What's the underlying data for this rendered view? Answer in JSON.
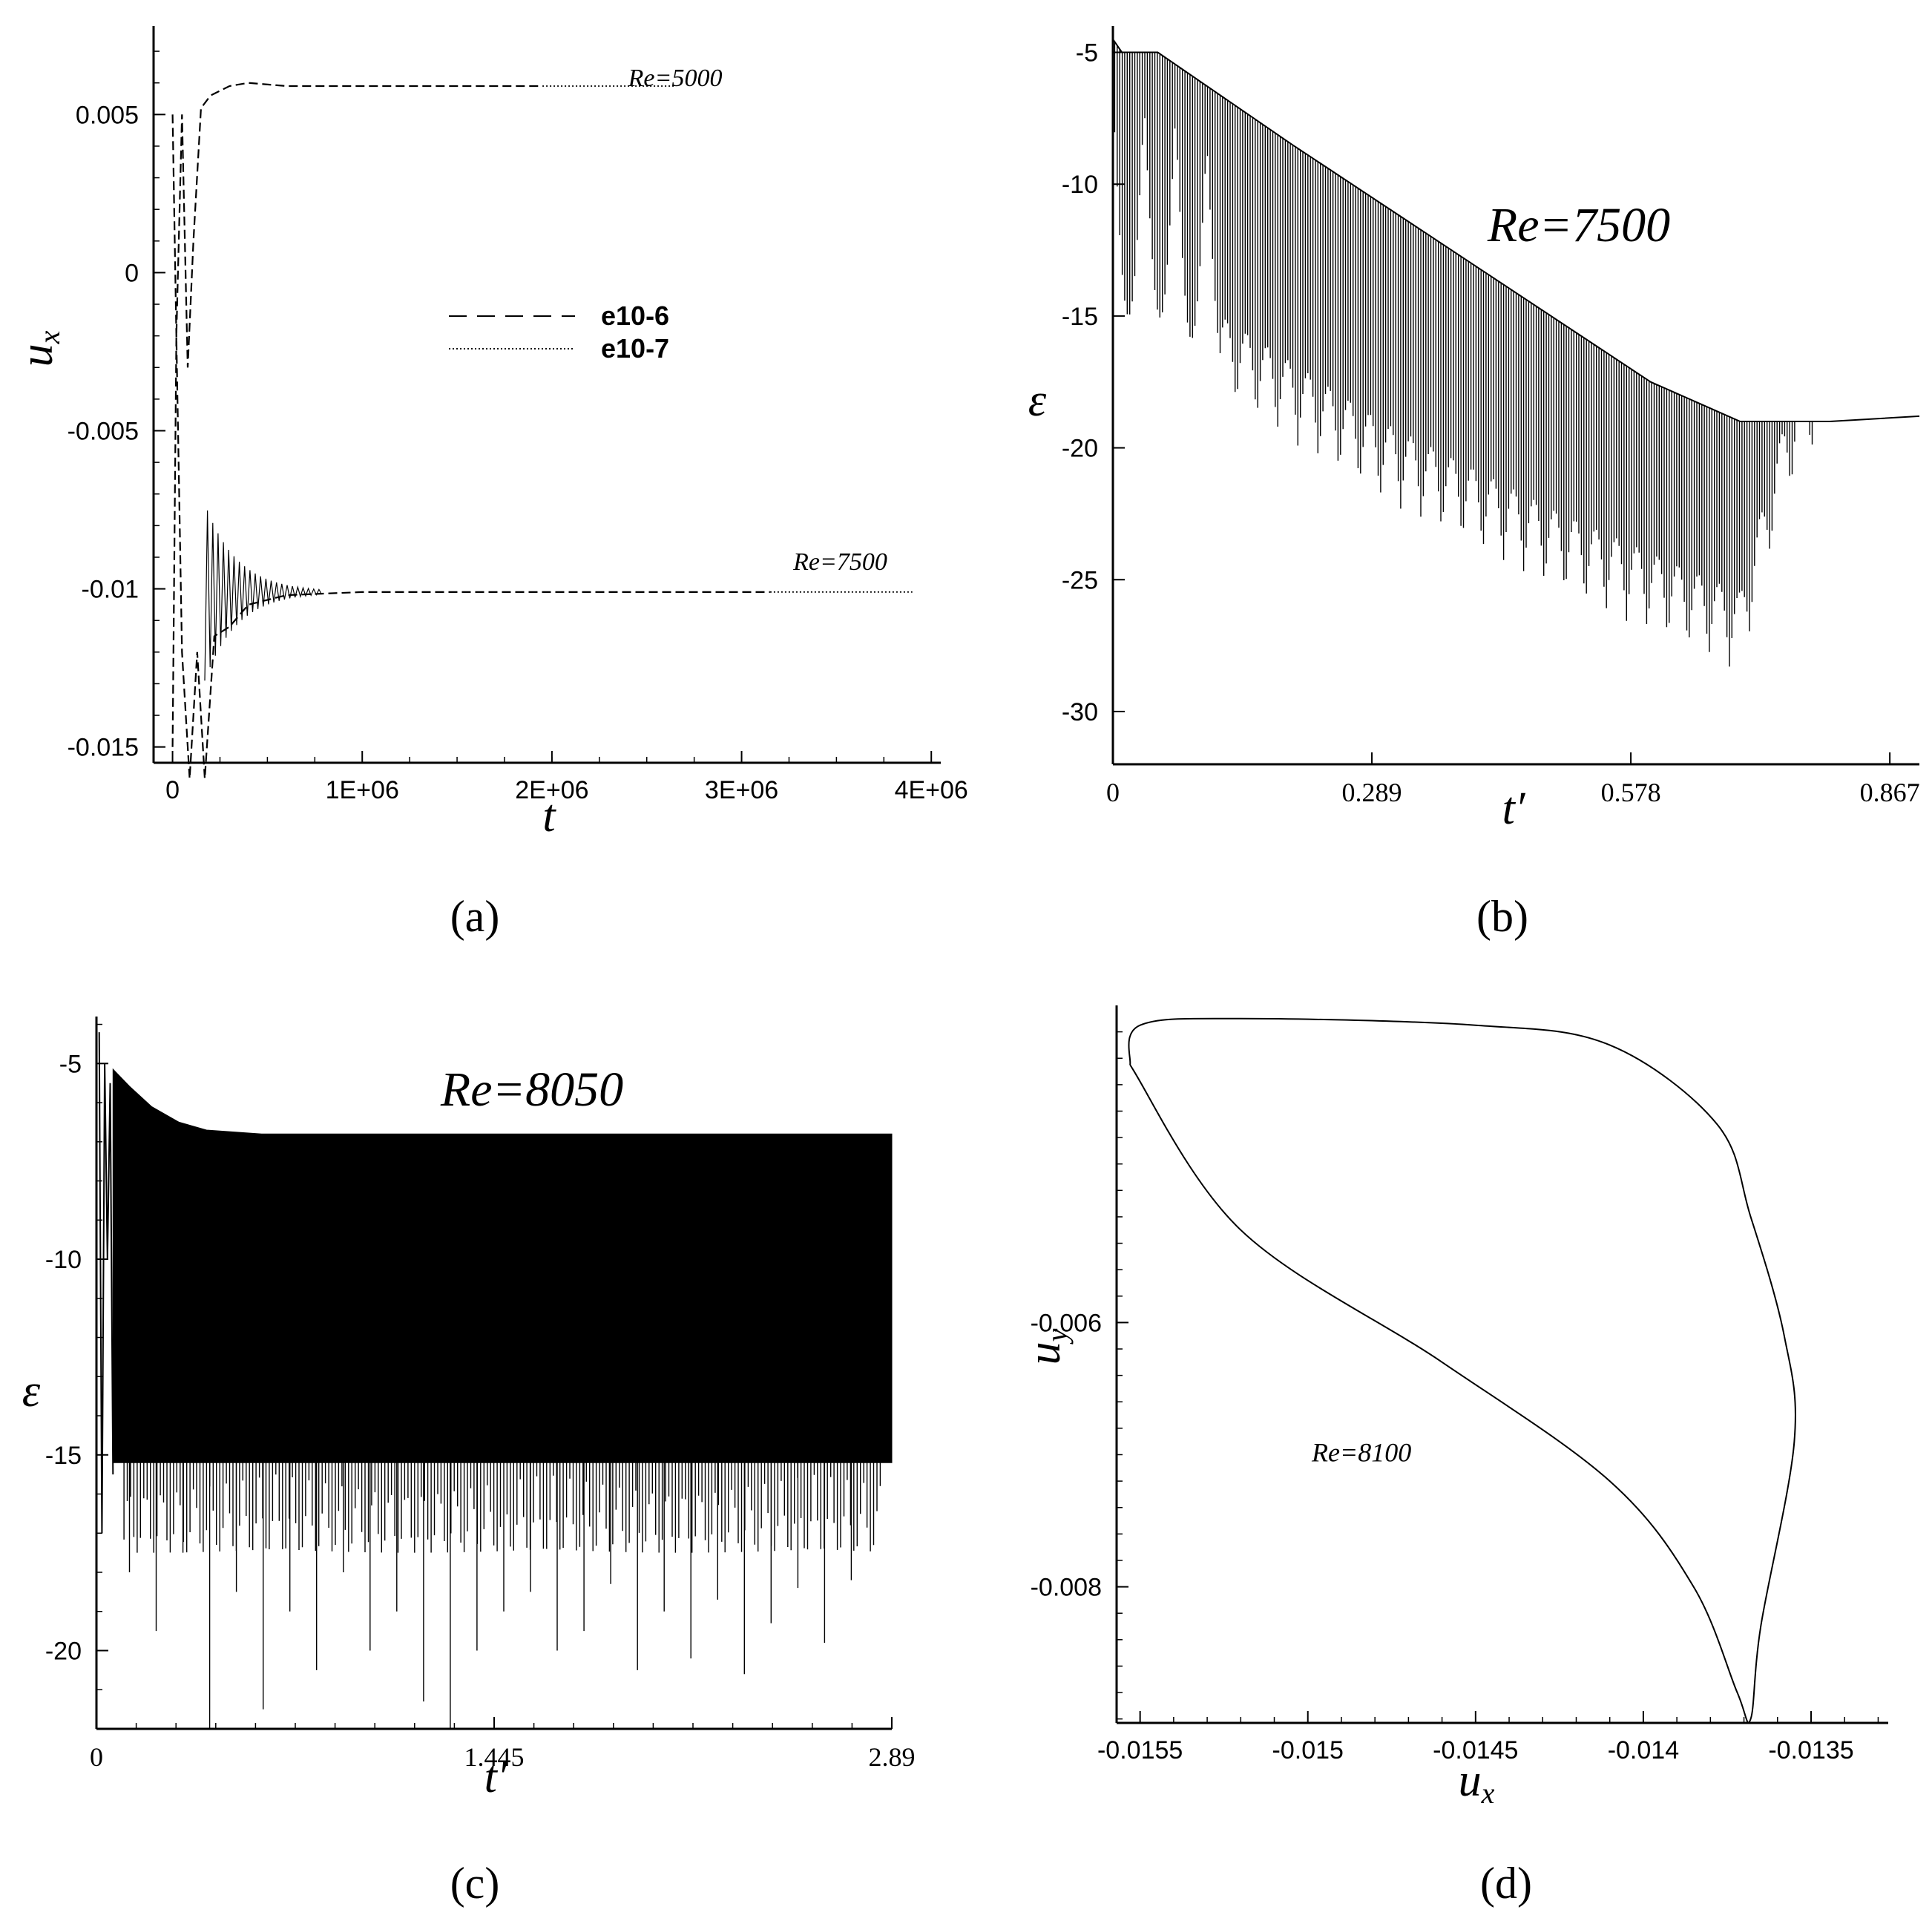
{
  "chart_data": [
    {
      "panel": "a",
      "type": "line",
      "caption": "(a)",
      "xlabel": "t",
      "ylabel": "u",
      "ylabel_sub": "x",
      "xlim": [
        -100000,
        4050000
      ],
      "ylim": [
        -0.0155,
        0.0078
      ],
      "x_ticks": [
        0,
        1000000,
        2000000,
        3000000,
        4000000
      ],
      "x_tick_labels": [
        "0",
        "1E+06",
        "2E+06",
        "3E+06",
        "4E+06"
      ],
      "y_ticks": [
        0.005,
        0,
        -0.005,
        -0.01,
        -0.015
      ],
      "y_tick_labels": [
        "0.005",
        "0",
        "-0.005",
        "-0.01",
        "-0.015"
      ],
      "legend": [
        {
          "label": "e10-6",
          "style": "dashed"
        },
        {
          "label": "e10-7",
          "style": "dotted"
        }
      ],
      "annotations": [
        {
          "text": "Re=5000",
          "x": 2650000,
          "y": 0.0059
        },
        {
          "text": "Re=7500",
          "x": 3520000,
          "y": -0.0094
        }
      ],
      "series": [
        {
          "style": "dashed",
          "x": [
            0,
            20000,
            50000,
            80000,
            110000,
            150000,
            200000,
            300000,
            400000,
            600000,
            1000000,
            1500000,
            1950000
          ],
          "y": [
            -0.015,
            -0.002,
            0.005,
            -0.003,
            0.001,
            0.0052,
            0.0056,
            0.0059,
            0.006,
            0.0059,
            0.0059,
            0.0059,
            0.0059
          ]
        },
        {
          "style": "dotted",
          "x": [
            1950000,
            2500000,
            2650000
          ],
          "y": [
            0.0059,
            0.0059,
            0.0059
          ]
        },
        {
          "style": "dashed",
          "x": [
            0,
            20000,
            50000,
            90000,
            130000,
            170000,
            220000,
            300000,
            400000,
            600000,
            1000000,
            2000000,
            3150000
          ],
          "y": [
            0.005,
            -0.002,
            -0.012,
            -0.016,
            -0.012,
            -0.016,
            -0.0115,
            -0.0112,
            -0.0105,
            -0.0102,
            -0.0101,
            -0.0101,
            -0.0101
          ]
        },
        {
          "style": "dotted",
          "x": [
            3150000,
            3900000
          ],
          "y": [
            -0.0101,
            -0.0101
          ]
        }
      ]
    },
    {
      "panel": "b",
      "type": "line",
      "caption": "(b)",
      "title": "Re=7500",
      "xlabel": "t′",
      "ylabel": "ε",
      "xlim": [
        0,
        0.9
      ],
      "ylim": [
        -32,
        -4
      ],
      "x_ticks": [
        0,
        0.289,
        0.578,
        0.867
      ],
      "x_tick_labels": [
        "0",
        "0.289",
        "0.578",
        "0.867"
      ],
      "y_ticks": [
        -5,
        -10,
        -15,
        -20,
        -25,
        -30
      ],
      "y_tick_labels": [
        "-5",
        "-10",
        "-15",
        "-20",
        "-25",
        "-30"
      ],
      "upper_envelope": {
        "x": [
          0,
          0.01,
          0.05,
          0.2,
          0.4,
          0.6,
          0.7,
          0.8,
          0.9
        ],
        "y": [
          -4.5,
          -5,
          -5,
          -8.5,
          -13,
          -17.5,
          -19,
          -19,
          -18.8
        ]
      },
      "lower_envelope": {
        "x": [
          0.12,
          0.3,
          0.5,
          0.7,
          0.75,
          0.8,
          0.9
        ],
        "y": [
          -18,
          -22,
          -25.5,
          -28.5,
          -22,
          -19,
          -18.8
        ]
      }
    },
    {
      "panel": "c",
      "type": "line",
      "caption": "(c)",
      "title": "Re=8050",
      "xlabel": "t′",
      "ylabel": "ε",
      "xlim": [
        0,
        2.89
      ],
      "ylim": [
        -22,
        -3.8
      ],
      "x_ticks": [
        0,
        1.445,
        2.89
      ],
      "x_tick_labels": [
        "0",
        "1.445",
        "2.89"
      ],
      "y_ticks": [
        -5,
        -10,
        -15,
        -20
      ],
      "y_tick_labels": [
        "-5",
        "-10",
        "-15",
        "-20"
      ],
      "upper_envelope": {
        "x": [
          0.04,
          0.15,
          0.25,
          0.4,
          0.6,
          1.0,
          2.89
        ],
        "y": [
          -5,
          -5.8,
          -6.4,
          -6.7,
          -6.8,
          -6.8,
          -6.8
        ]
      },
      "lower_level": -15.2,
      "spike_depths": [
        -18,
        -19.5,
        -17.5,
        -22,
        -18.5,
        -21.5,
        -19,
        -20.5,
        -18,
        -20,
        -19,
        -21.3,
        -22,
        -20,
        -19,
        -18.5,
        -20,
        -19.5,
        -18.3,
        -20.5,
        -19,
        -20.2,
        -18.7,
        -20.6,
        -19.3,
        -18.4,
        -19.8,
        -18.2
      ]
    },
    {
      "panel": "d",
      "type": "line",
      "caption": "(d)",
      "xlabel": "u",
      "xlabel_sub": "x",
      "ylabel": "u",
      "ylabel_sub": "y",
      "xlim": [
        -0.01557,
        -0.01327
      ],
      "ylim": [
        -0.00903,
        -0.0036
      ],
      "x_ticks": [
        -0.0155,
        -0.015,
        -0.0145,
        -0.014,
        -0.0135
      ],
      "x_tick_labels": [
        "-0.0155",
        "-0.015",
        "-0.0145",
        "-0.014",
        "-0.0135"
      ],
      "y_ticks": [
        -0.006,
        -0.008
      ],
      "y_tick_labels": [
        "-0.006",
        "-0.008"
      ],
      "annotations": [
        {
          "text": "Re=8100",
          "x": -0.01484,
          "y": -0.00705
        }
      ],
      "series": [
        {
          "x": [
            -0.01553,
            -0.0155,
            -0.0152,
            -0.0145,
            -0.0141,
            -0.01378,
            -0.01368,
            -0.01358,
            -0.01355,
            -0.01365,
            -0.01368,
            -0.01372,
            -0.01385,
            -0.0141,
            -0.0146,
            -0.0152,
            -0.01553
          ],
          "y": [
            -0.00405,
            -0.00375,
            -0.0037,
            -0.00375,
            -0.0039,
            -0.0045,
            -0.0052,
            -0.0061,
            -0.0069,
            -0.0083,
            -0.009,
            -0.0088,
            -0.008,
            -0.0072,
            -0.0063,
            -0.0053,
            -0.00405
          ]
        }
      ]
    }
  ]
}
